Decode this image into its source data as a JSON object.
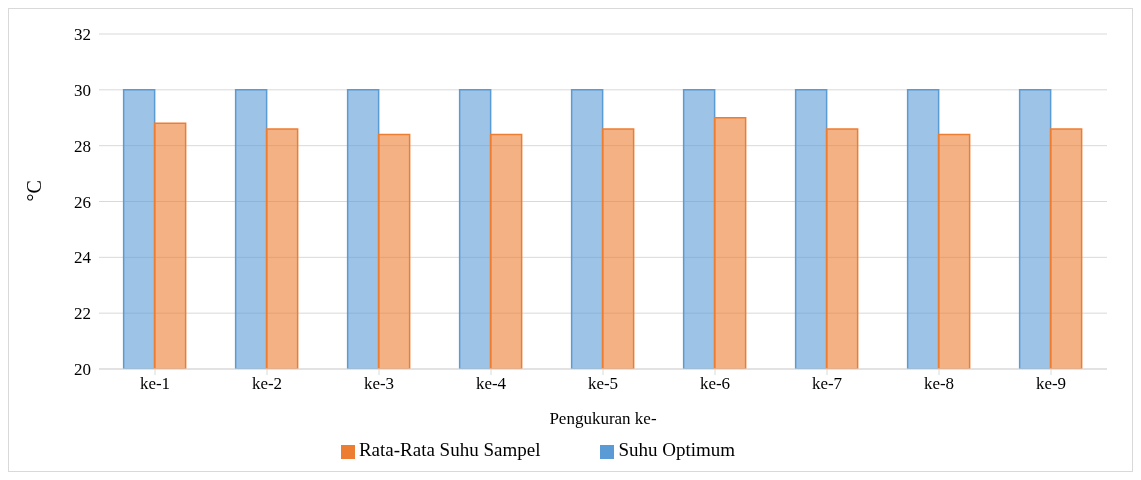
{
  "chart_data": {
    "type": "bar",
    "xlabel": "Pengukuran ke-",
    "ylabel": "°C",
    "categories": [
      "ke-1",
      "ke-2",
      "ke-3",
      "ke-4",
      "ke-5",
      "ke-6",
      "ke-7",
      "ke-8",
      "ke-9"
    ],
    "series": [
      {
        "name": "Suhu Optimum",
        "color": "#5b9bd5",
        "values": [
          30,
          30,
          30,
          30,
          30,
          30,
          30,
          30,
          30
        ]
      },
      {
        "name": "Rata-Rata Suhu Sampel",
        "color": "#ed7d31",
        "values": [
          28.8,
          28.6,
          28.4,
          28.4,
          28.6,
          29.0,
          28.6,
          28.4,
          28.6
        ]
      }
    ],
    "ylim": [
      20,
      32
    ],
    "yticks": [
      20,
      22,
      24,
      26,
      28,
      30,
      32
    ],
    "grid": "y",
    "legend": "bottom"
  }
}
